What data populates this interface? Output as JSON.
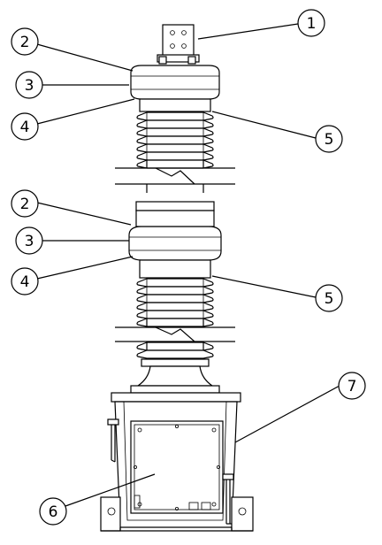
{
  "callouts": [
    {
      "id": "c1a",
      "label": "1"
    },
    {
      "id": "c2a",
      "label": "2"
    },
    {
      "id": "c3a",
      "label": "3"
    },
    {
      "id": "c4a",
      "label": "4"
    },
    {
      "id": "c5a",
      "label": "5"
    },
    {
      "id": "c2b",
      "label": "2"
    },
    {
      "id": "c3b",
      "label": "3"
    },
    {
      "id": "c4b",
      "label": "4"
    },
    {
      "id": "c5b",
      "label": "5"
    },
    {
      "id": "c6",
      "label": "6"
    },
    {
      "id": "c7",
      "label": "7"
    }
  ]
}
